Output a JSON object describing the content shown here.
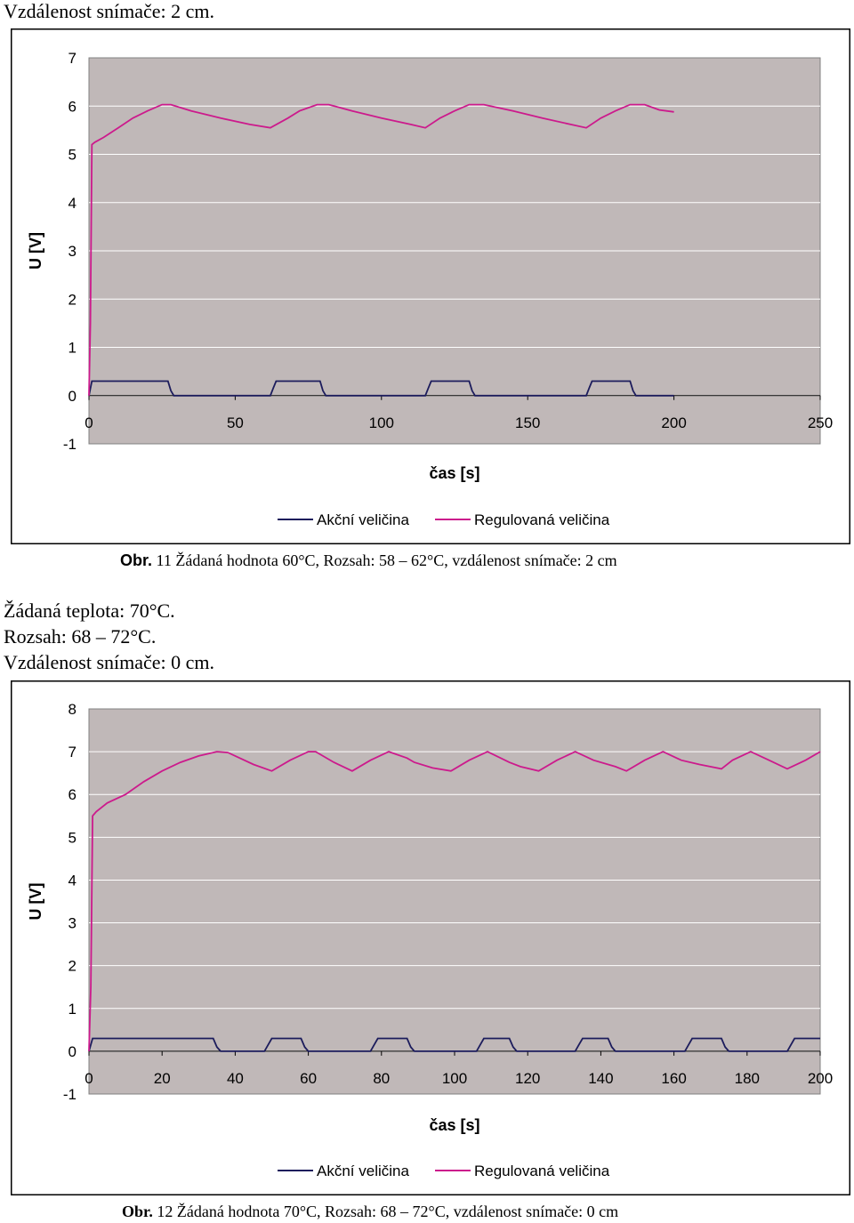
{
  "text": {
    "line1": "Vzdálenost snímače: 2 cm.",
    "caption1_prefix": "Obr.",
    "caption1_num": "11",
    "caption1_text": "Žádaná hodnota 60°C, Rozsah: 58 – 62°C, vzdálenost snímače: 2 cm",
    "line2": "Žádaná teplota: 70°C.",
    "line3": "Rozsah: 68 – 72°C.",
    "line4": "Vzdálenost snímače: 0 cm.",
    "caption2_prefix": "Obr.",
    "caption2_num": "12",
    "caption2_text": "Žádaná hodnota 70°C, Rozsah: 68 – 72°C, vzdálenost snímače: 0 cm"
  },
  "colors": {
    "plot_bg": "#c0b8b8",
    "grid": "#ffffff",
    "action": "#1c1c5c",
    "regulated": "#cc1a8c"
  },
  "chart_data": [
    {
      "type": "line",
      "ylabel": "U [V]",
      "xlabel": "čas [s]",
      "xlim": [
        0,
        250
      ],
      "ylim": [
        -1,
        7
      ],
      "xticks": [
        0,
        50,
        100,
        150,
        200,
        250
      ],
      "yticks": [
        -1,
        0,
        1,
        2,
        3,
        4,
        5,
        6,
        7
      ],
      "grid": true,
      "legend": "bottom",
      "series": [
        {
          "name": "Akční veličina",
          "x": [
            0,
            1,
            27,
            28,
            29,
            62,
            63,
            64,
            79,
            80,
            81,
            115,
            116,
            117,
            130,
            131,
            132,
            170,
            171,
            172,
            185,
            186,
            187,
            200
          ],
          "y": [
            0,
            0.3,
            0.3,
            0.1,
            0,
            0,
            0.15,
            0.3,
            0.3,
            0.1,
            0,
            0,
            0.15,
            0.3,
            0.3,
            0.1,
            0,
            0,
            0.15,
            0.3,
            0.3,
            0.1,
            0,
            0
          ]
        },
        {
          "name": "Regulovaná veličina",
          "x": [
            0,
            0.5,
            1,
            2,
            5,
            10,
            15,
            20,
            25,
            28,
            35,
            45,
            55,
            62,
            68,
            72,
            78,
            82,
            90,
            100,
            110,
            115,
            120,
            125,
            130,
            135,
            145,
            155,
            170,
            175,
            180,
            185,
            190,
            195,
            200
          ],
          "y": [
            0,
            1.5,
            5.2,
            5.25,
            5.35,
            5.55,
            5.75,
            5.9,
            6.03,
            6.03,
            5.9,
            5.75,
            5.62,
            5.55,
            5.75,
            5.9,
            6.03,
            6.03,
            5.9,
            5.75,
            5.62,
            5.55,
            5.75,
            5.9,
            6.03,
            6.03,
            5.9,
            5.75,
            5.55,
            5.75,
            5.9,
            6.03,
            6.03,
            5.92,
            5.88
          ]
        }
      ]
    },
    {
      "type": "line",
      "ylabel": "U [V]",
      "xlabel": "čas [s]",
      "xlim": [
        0,
        200
      ],
      "ylim": [
        -1,
        8
      ],
      "xticks": [
        0,
        20,
        40,
        60,
        80,
        100,
        120,
        140,
        160,
        180,
        200
      ],
      "yticks": [
        -1,
        0,
        1,
        2,
        3,
        4,
        5,
        6,
        7,
        8
      ],
      "grid": true,
      "legend": "bottom",
      "series": [
        {
          "name": "Akční veličina",
          "x": [
            0,
            1,
            34,
            35,
            36,
            48,
            49,
            50,
            58,
            59,
            60,
            77,
            78,
            79,
            87,
            88,
            89,
            106,
            107,
            108,
            115,
            116,
            117,
            133,
            134,
            135,
            142,
            143,
            144,
            163,
            164,
            165,
            173,
            174,
            175,
            191,
            192,
            193,
            200
          ],
          "y": [
            0,
            0.3,
            0.3,
            0.1,
            0,
            0,
            0.15,
            0.3,
            0.3,
            0.1,
            0,
            0,
            0.15,
            0.3,
            0.3,
            0.1,
            0,
            0,
            0.15,
            0.3,
            0.3,
            0.1,
            0,
            0,
            0.15,
            0.3,
            0.3,
            0.1,
            0,
            0,
            0.15,
            0.3,
            0.3,
            0.1,
            0,
            0,
            0.15,
            0.3,
            0.3
          ]
        },
        {
          "name": "Regulovaná veličina",
          "x": [
            0,
            0.5,
            1,
            2,
            5,
            10,
            15,
            20,
            25,
            30,
            35,
            38,
            45,
            50,
            55,
            60,
            62,
            67,
            72,
            77,
            82,
            87,
            89,
            94,
            99,
            104,
            109,
            115,
            118,
            123,
            128,
            133,
            138,
            144,
            147,
            152,
            157,
            162,
            167,
            173,
            176,
            181,
            186,
            191,
            196,
            200
          ],
          "y": [
            0,
            1.5,
            5.5,
            5.6,
            5.8,
            6.0,
            6.3,
            6.55,
            6.75,
            6.9,
            7.0,
            6.98,
            6.7,
            6.55,
            6.8,
            7.0,
            7.0,
            6.75,
            6.55,
            6.8,
            7.0,
            6.85,
            6.75,
            6.62,
            6.55,
            6.8,
            7.0,
            6.75,
            6.65,
            6.55,
            6.8,
            7.0,
            6.8,
            6.65,
            6.55,
            6.8,
            7.0,
            6.8,
            6.7,
            6.6,
            6.8,
            7.0,
            6.8,
            6.6,
            6.8,
            7.0
          ]
        }
      ]
    }
  ]
}
